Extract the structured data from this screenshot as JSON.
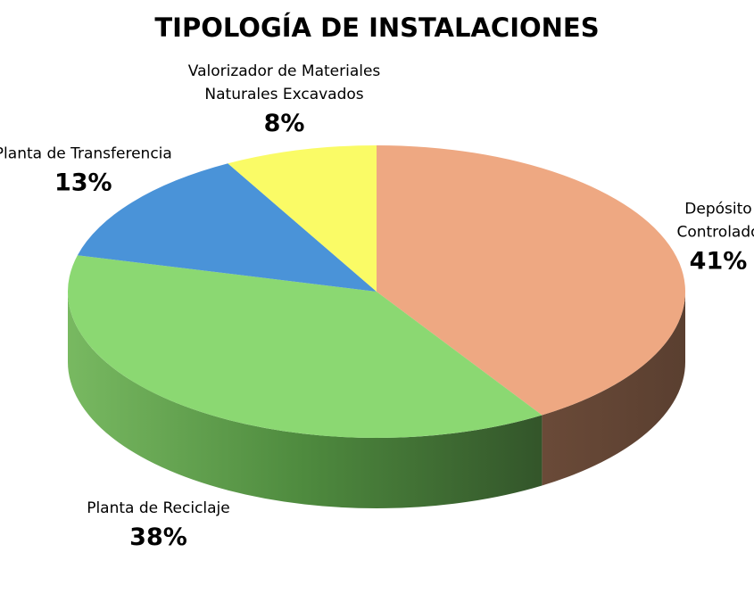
{
  "chart_data": {
    "type": "pie",
    "title": "TIPOLOGÍA DE INSTALACIONES",
    "slices": [
      {
        "name": "Depósito Controlado",
        "label_lines": [
          "Depósito",
          "Controlado"
        ],
        "value": 41,
        "value_label": "41%",
        "color": "#EEA882",
        "side_color": "#5F4434"
      },
      {
        "name": "Planta de Reciclaje",
        "label_lines": [
          "Planta de Reciclaje"
        ],
        "value": 38,
        "value_label": "38%",
        "color": "#8BD872",
        "side_color": "#5E9A49"
      },
      {
        "name": "Planta de Transferencia",
        "label_lines": [
          "Planta de Transferencia"
        ],
        "value": 13,
        "value_label": "13%",
        "color": "#4A93D8",
        "side_color": "#2D5A88"
      },
      {
        "name": "Valorizador de Materiales Naturales Excavados",
        "label_lines": [
          "Valorizador de Materiales",
          "Naturales Excavados"
        ],
        "value": 8,
        "value_label": "8%",
        "color": "#FAFB66",
        "side_color": "#9C9D3C"
      }
    ],
    "legend": "none"
  }
}
